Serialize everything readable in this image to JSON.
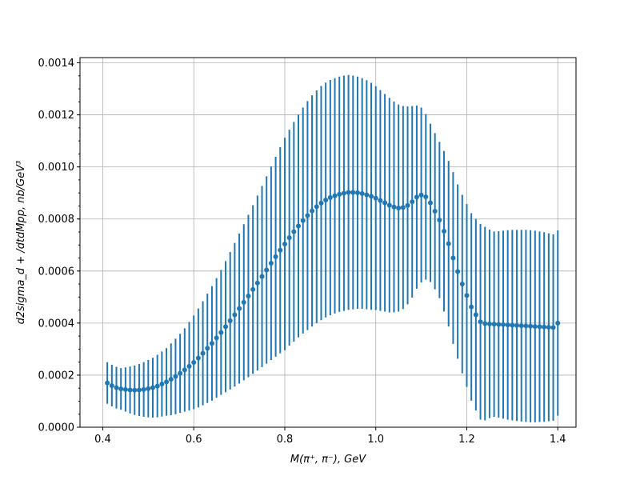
{
  "chart_data": {
    "type": "scatter",
    "title": "",
    "xlabel": "M(π⁺, π⁻), GeV",
    "ylabel": "d2sigma_d + /dtdMpp, nb/GeV³",
    "xlim": [
      0.35,
      1.44
    ],
    "ylim": [
      0,
      0.00142
    ],
    "grid": true,
    "marker_color": "#1f77b4",
    "x_ticks": [
      {
        "value": 0.4,
        "label": "0.4"
      },
      {
        "value": 0.6,
        "label": "0.6"
      },
      {
        "value": 0.8,
        "label": "0.8"
      },
      {
        "value": 1.0,
        "label": "1.0"
      },
      {
        "value": 1.2,
        "label": "1.2"
      },
      {
        "value": 1.4,
        "label": "1.4"
      }
    ],
    "y_ticks": [
      {
        "value": 0,
        "label": "0.0000"
      },
      {
        "value": 0.0002,
        "label": "0.0002"
      },
      {
        "value": 0.0004,
        "label": "0.0004"
      },
      {
        "value": 0.0006,
        "label": "0.0006"
      },
      {
        "value": 0.0008,
        "label": "0.0008"
      },
      {
        "value": 0.001,
        "label": "0.0010"
      },
      {
        "value": 0.0012,
        "label": "0.0012"
      },
      {
        "value": 0.0014,
        "label": "0.0014"
      }
    ],
    "y_minor_step": 5e-05,
    "series": [
      {
        "x": [
          0.41,
          0.42,
          0.43,
          0.44,
          0.45,
          0.46,
          0.47,
          0.48,
          0.49,
          0.5,
          0.51,
          0.52,
          0.53,
          0.54,
          0.55,
          0.56,
          0.57,
          0.58,
          0.59,
          0.6,
          0.61,
          0.62,
          0.63,
          0.64,
          0.65,
          0.66,
          0.67,
          0.68,
          0.69,
          0.7,
          0.71,
          0.72,
          0.73,
          0.74,
          0.75,
          0.76,
          0.77,
          0.78,
          0.79,
          0.8,
          0.81,
          0.82,
          0.83,
          0.84,
          0.85,
          0.86,
          0.87,
          0.88,
          0.89,
          0.9,
          0.91,
          0.92,
          0.93,
          0.94,
          0.95,
          0.96,
          0.97,
          0.98,
          0.99,
          1.0,
          1.01,
          1.02,
          1.03,
          1.04,
          1.05,
          1.06,
          1.07,
          1.08,
          1.09,
          1.1,
          1.11,
          1.12,
          1.13,
          1.14,
          1.15,
          1.16,
          1.17,
          1.18,
          1.19,
          1.2,
          1.21,
          1.22,
          1.23,
          1.24,
          1.25,
          1.26,
          1.27,
          1.28,
          1.29,
          1.3,
          1.31,
          1.32,
          1.33,
          1.34,
          1.35,
          1.36,
          1.37,
          1.38,
          1.39,
          1.4
        ],
        "y": [
          0.00017,
          0.00016,
          0.000152,
          0.000147,
          0.000145,
          0.000143,
          0.000142,
          0.000143,
          0.000145,
          0.000148,
          0.000152,
          0.000158,
          0.000166,
          0.000174,
          0.000184,
          0.000195,
          0.000207,
          0.00022,
          0.000234,
          0.000249,
          0.000266,
          0.000284,
          0.000303,
          0.000322,
          0.000343,
          0.000364,
          0.000386,
          0.000409,
          0.000432,
          0.000456,
          0.00048,
          0.000504,
          0.000529,
          0.000554,
          0.000579,
          0.000604,
          0.00063,
          0.000655,
          0.00068,
          0.000704,
          0.000728,
          0.000751,
          0.000773,
          0.000794,
          0.000813,
          0.000831,
          0.000847,
          0.000861,
          0.000873,
          0.000882,
          0.000889,
          0.000895,
          0.000899,
          0.000902,
          0.000902,
          0.000901,
          0.000898,
          0.000893,
          0.000887,
          0.00088,
          0.000871,
          0.000862,
          0.000853,
          0.000846,
          0.000842,
          0.000844,
          0.000852,
          0.000866,
          0.000884,
          0.000892,
          0.000885,
          0.000862,
          0.00083,
          0.000796,
          0.000753,
          0.000705,
          0.00065,
          0.000598,
          0.00055,
          0.000506,
          0.000462,
          0.000432,
          0.000405,
          0.000398,
          0.000397,
          0.000396,
          0.000395,
          0.000394,
          0.000393,
          0.000392,
          0.000391,
          0.00039,
          0.000389,
          0.000388,
          0.000387,
          0.000386,
          0.000385,
          0.000384,
          0.000383,
          0.0004
        ],
        "yerr": [
          8e-05,
          8e-05,
          8e-05,
          8e-05,
          8.5e-05,
          9e-05,
          9.5e-05,
          0.0001,
          0.000105,
          0.00011,
          0.000115,
          0.00012,
          0.000125,
          0.00013,
          0.000138,
          0.000145,
          0.000152,
          0.00016,
          0.00017,
          0.00018,
          0.00019,
          0.0002,
          0.00021,
          0.00022,
          0.00023,
          0.00024,
          0.000252,
          0.000264,
          0.000276,
          0.000288,
          0.0003,
          0.000312,
          0.000324,
          0.000336,
          0.000348,
          0.00036,
          0.000372,
          0.000384,
          0.000396,
          0.000408,
          0.000415,
          0.000422,
          0.000428,
          0.000434,
          0.00044,
          0.000444,
          0.000447,
          0.00045,
          0.000451,
          0.000452,
          0.000452,
          0.000452,
          0.000452,
          0.000451,
          0.000449,
          0.000446,
          0.000443,
          0.00044,
          0.000436,
          0.00043,
          0.000424,
          0.000418,
          0.000412,
          0.000405,
          0.000398,
          0.00039,
          0.00038,
          0.000368,
          0.000352,
          0.000336,
          0.000318,
          0.000304,
          0.0003,
          0.0003,
          0.000308,
          0.000318,
          0.00033,
          0.000335,
          0.000343,
          0.000351,
          0.00036,
          0.000368,
          0.000376,
          0.000372,
          0.000362,
          0.000356,
          0.000358,
          0.000361,
          0.000364,
          0.000366,
          0.000367,
          0.000368,
          0.000369,
          0.000369,
          0.000368,
          0.000366,
          0.000364,
          0.000361,
          0.000358,
          0.000356
        ]
      }
    ]
  }
}
